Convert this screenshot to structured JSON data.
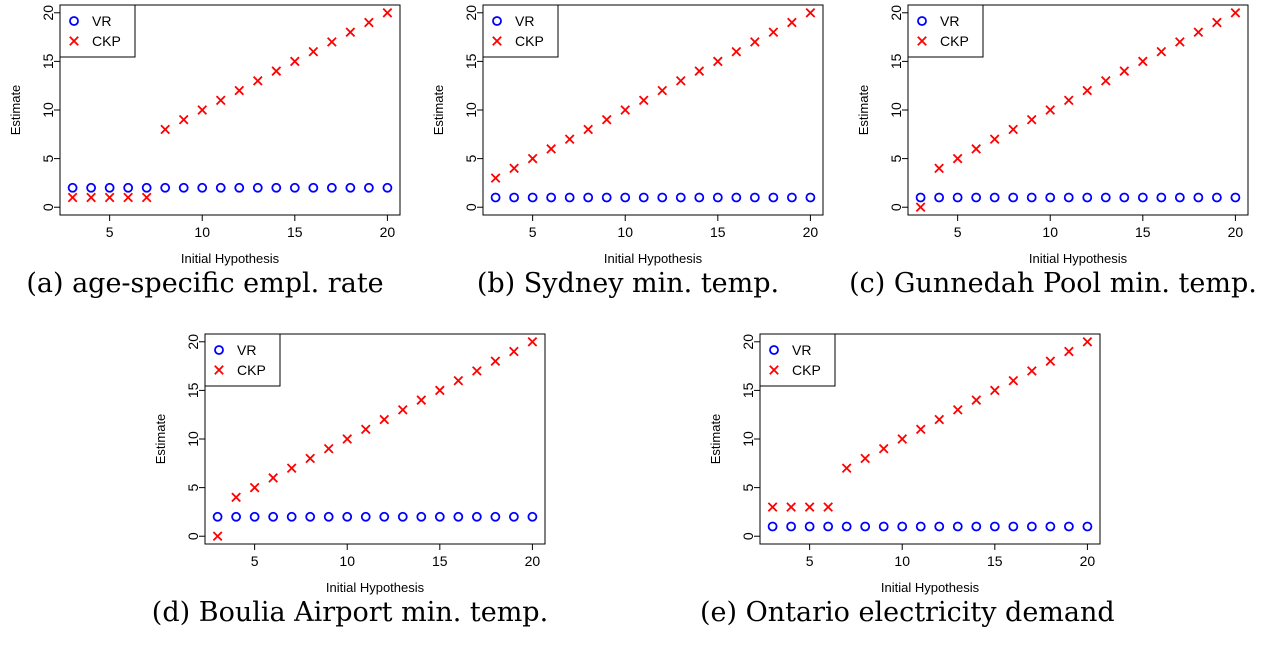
{
  "colors": {
    "vr": "#0000ff",
    "ckp": "#ff0000"
  },
  "chart_data": [
    {
      "type": "scatter",
      "caption": "(a) age-specific empl. rate",
      "xlabel": "Initial Hypothesis",
      "ylabel": "Estimate",
      "xlim": [
        3,
        20
      ],
      "ylim": [
        0,
        20
      ],
      "x_ticks": [
        5,
        10,
        15,
        20
      ],
      "y_ticks": [
        0,
        5,
        10,
        15,
        20
      ],
      "legend_position": "top-left",
      "series": [
        {
          "name": "VR",
          "marker": "circle",
          "x": [
            3,
            4,
            5,
            6,
            7,
            8,
            9,
            10,
            11,
            12,
            13,
            14,
            15,
            16,
            17,
            18,
            19,
            20
          ],
          "y": [
            2,
            2,
            2,
            2,
            2,
            2,
            2,
            2,
            2,
            2,
            2,
            2,
            2,
            2,
            2,
            2,
            2,
            2
          ]
        },
        {
          "name": "CKP",
          "marker": "cross",
          "x": [
            3,
            4,
            5,
            6,
            7,
            8,
            9,
            10,
            11,
            12,
            13,
            14,
            15,
            16,
            17,
            18,
            19,
            20
          ],
          "y": [
            1,
            1,
            1,
            1,
            1,
            8,
            9,
            10,
            11,
            12,
            13,
            14,
            15,
            16,
            17,
            18,
            19,
            20
          ]
        }
      ]
    },
    {
      "type": "scatter",
      "caption": "(b) Sydney min. temp.",
      "xlabel": "Initial Hypothesis",
      "ylabel": "Estimate",
      "xlim": [
        3,
        20
      ],
      "ylim": [
        0,
        20
      ],
      "x_ticks": [
        5,
        10,
        15,
        20
      ],
      "y_ticks": [
        0,
        5,
        10,
        15,
        20
      ],
      "legend_position": "top-left",
      "series": [
        {
          "name": "VR",
          "marker": "circle",
          "x": [
            3,
            4,
            5,
            6,
            7,
            8,
            9,
            10,
            11,
            12,
            13,
            14,
            15,
            16,
            17,
            18,
            19,
            20
          ],
          "y": [
            1,
            1,
            1,
            1,
            1,
            1,
            1,
            1,
            1,
            1,
            1,
            1,
            1,
            1,
            1,
            1,
            1,
            1
          ]
        },
        {
          "name": "CKP",
          "marker": "cross",
          "x": [
            3,
            4,
            5,
            6,
            7,
            8,
            9,
            10,
            11,
            12,
            13,
            14,
            15,
            16,
            17,
            18,
            19,
            20
          ],
          "y": [
            3,
            4,
            5,
            6,
            7,
            8,
            9,
            10,
            11,
            12,
            13,
            14,
            15,
            16,
            17,
            18,
            19,
            20
          ]
        }
      ]
    },
    {
      "type": "scatter",
      "caption": "(c) Gunnedah Pool min. temp.",
      "xlabel": "Initial Hypothesis",
      "ylabel": "Estimate",
      "xlim": [
        3,
        20
      ],
      "ylim": [
        0,
        20
      ],
      "x_ticks": [
        5,
        10,
        15,
        20
      ],
      "y_ticks": [
        0,
        5,
        10,
        15,
        20
      ],
      "legend_position": "top-left",
      "series": [
        {
          "name": "VR",
          "marker": "circle",
          "x": [
            3,
            4,
            5,
            6,
            7,
            8,
            9,
            10,
            11,
            12,
            13,
            14,
            15,
            16,
            17,
            18,
            19,
            20
          ],
          "y": [
            1,
            1,
            1,
            1,
            1,
            1,
            1,
            1,
            1,
            1,
            1,
            1,
            1,
            1,
            1,
            1,
            1,
            1
          ]
        },
        {
          "name": "CKP",
          "marker": "cross",
          "x": [
            3,
            4,
            5,
            6,
            7,
            8,
            9,
            10,
            11,
            12,
            13,
            14,
            15,
            16,
            17,
            18,
            19,
            20
          ],
          "y": [
            0,
            4,
            5,
            6,
            7,
            8,
            9,
            10,
            11,
            12,
            13,
            14,
            15,
            16,
            17,
            18,
            19,
            20
          ]
        }
      ]
    },
    {
      "type": "scatter",
      "caption": "(d) Boulia Airport min. temp.",
      "xlabel": "Initial Hypothesis",
      "ylabel": "Estimate",
      "xlim": [
        3,
        20
      ],
      "ylim": [
        0,
        20
      ],
      "x_ticks": [
        5,
        10,
        15,
        20
      ],
      "y_ticks": [
        0,
        5,
        10,
        15,
        20
      ],
      "legend_position": "top-left",
      "series": [
        {
          "name": "VR",
          "marker": "circle",
          "x": [
            3,
            4,
            5,
            6,
            7,
            8,
            9,
            10,
            11,
            12,
            13,
            14,
            15,
            16,
            17,
            18,
            19,
            20
          ],
          "y": [
            2,
            2,
            2,
            2,
            2,
            2,
            2,
            2,
            2,
            2,
            2,
            2,
            2,
            2,
            2,
            2,
            2,
            2
          ]
        },
        {
          "name": "CKP",
          "marker": "cross",
          "x": [
            3,
            4,
            5,
            6,
            7,
            8,
            9,
            10,
            11,
            12,
            13,
            14,
            15,
            16,
            17,
            18,
            19,
            20
          ],
          "y": [
            0,
            4,
            5,
            6,
            7,
            8,
            9,
            10,
            11,
            12,
            13,
            14,
            15,
            16,
            17,
            18,
            19,
            20
          ]
        }
      ]
    },
    {
      "type": "scatter",
      "caption": "(e) Ontario electricity demand",
      "xlabel": "Initial Hypothesis",
      "ylabel": "Estimate",
      "xlim": [
        3,
        20
      ],
      "ylim": [
        0,
        20
      ],
      "x_ticks": [
        5,
        10,
        15,
        20
      ],
      "y_ticks": [
        0,
        5,
        10,
        15,
        20
      ],
      "legend_position": "top-left",
      "series": [
        {
          "name": "VR",
          "marker": "circle",
          "x": [
            3,
            4,
            5,
            6,
            7,
            8,
            9,
            10,
            11,
            12,
            13,
            14,
            15,
            16,
            17,
            18,
            19,
            20
          ],
          "y": [
            1,
            1,
            1,
            1,
            1,
            1,
            1,
            1,
            1,
            1,
            1,
            1,
            1,
            1,
            1,
            1,
            1,
            1
          ]
        },
        {
          "name": "CKP",
          "marker": "cross",
          "x": [
            3,
            4,
            5,
            6,
            7,
            8,
            9,
            10,
            11,
            12,
            13,
            14,
            15,
            16,
            17,
            18,
            19,
            20
          ],
          "y": [
            3,
            3,
            3,
            3,
            7,
            8,
            9,
            10,
            11,
            12,
            13,
            14,
            15,
            16,
            17,
            18,
            19,
            20
          ]
        }
      ]
    }
  ]
}
